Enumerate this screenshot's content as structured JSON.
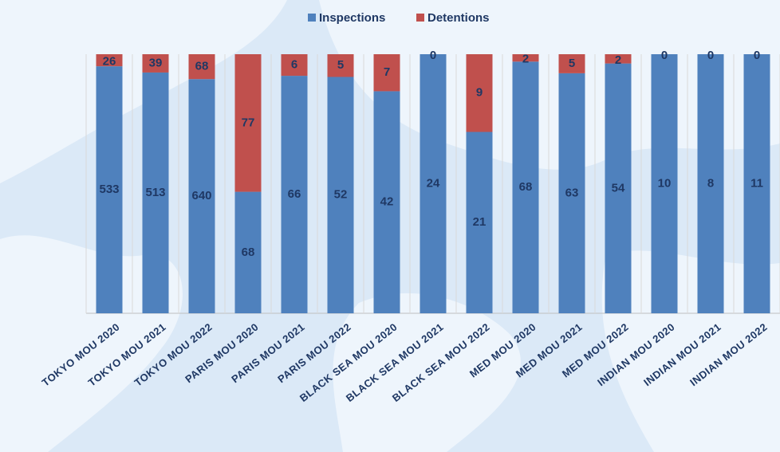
{
  "chart_data": {
    "type": "bar",
    "stacked": "percent",
    "categories": [
      "TOKYO MOU 2020",
      "TOKYO MOU 2021",
      "TOKYO MOU 2022",
      "PARIS MOU 2020",
      "PARIS MOU 2021",
      "PARIS MOU 2022",
      "BLACK SEA MOU 2020",
      "BLACK SEA MOU 2021",
      "BLACK SEA MOU 2022",
      "MED MOU 2020",
      "MED MOU 2021",
      "MED MOU 2022",
      "INDIAN MOU 2020",
      "INDIAN MOU 2021",
      "INDIAN MOU 2022"
    ],
    "series": [
      {
        "name": "Inspections",
        "color": "#4f81bd",
        "values": [
          533,
          513,
          640,
          68,
          66,
          52,
          42,
          24,
          21,
          68,
          63,
          54,
          10,
          8,
          11
        ]
      },
      {
        "name": "Detentions",
        "color": "#c0504d",
        "values": [
          26,
          39,
          68,
          77,
          6,
          5,
          7,
          0,
          9,
          2,
          5,
          2,
          0,
          0,
          0
        ]
      }
    ],
    "legend": "top"
  }
}
